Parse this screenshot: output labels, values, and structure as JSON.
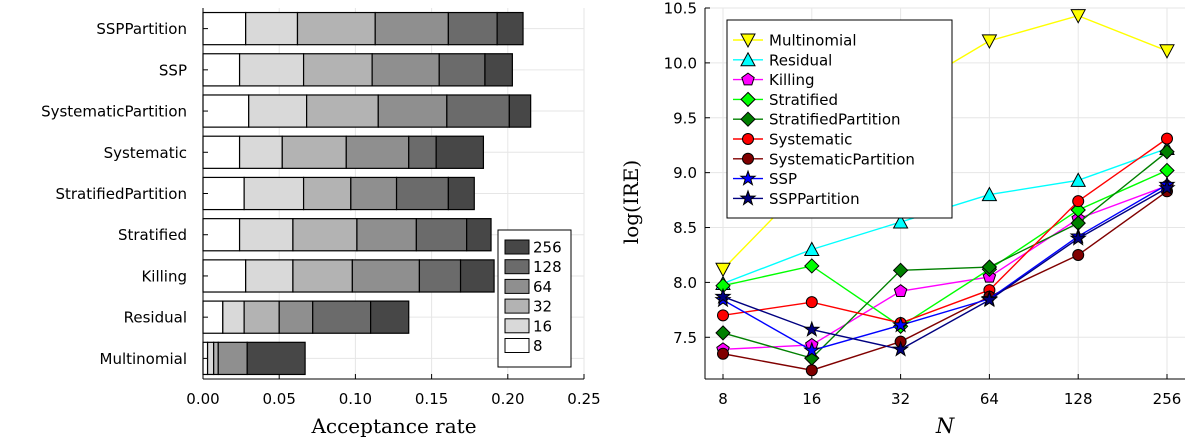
{
  "chart_data": [
    {
      "type": "bar",
      "orientation": "horizontal",
      "stacked": true,
      "categories": [
        "Multinomial",
        "Residual",
        "Killing",
        "Stratified",
        "StratifiedPartition",
        "Systematic",
        "SystematicPartition",
        "SSP",
        "SSPPartition"
      ],
      "series": [
        {
          "name": "8",
          "color": "#ffffff",
          "values": [
            0.003,
            0.013,
            0.028,
            0.024,
            0.027,
            0.024,
            0.03,
            0.024,
            0.028
          ]
        },
        {
          "name": "16",
          "color": "#d9d9d9",
          "values": [
            0.004,
            0.014,
            0.031,
            0.035,
            0.039,
            0.028,
            0.038,
            0.042,
            0.034
          ]
        },
        {
          "name": "32",
          "color": "#b3b3b3",
          "values": [
            0.003,
            0.023,
            0.039,
            0.042,
            0.031,
            0.042,
            0.047,
            0.045,
            0.051
          ]
        },
        {
          "name": "64",
          "color": "#8f8f8f",
          "values": [
            0.019,
            0.022,
            0.044,
            0.039,
            0.03,
            0.041,
            0.045,
            0.044,
            0.048
          ]
        },
        {
          "name": "128",
          "color": "#6b6b6b",
          "values": [
            0.0,
            0.038,
            0.027,
            0.033,
            0.034,
            0.018,
            0.041,
            0.03,
            0.032
          ]
        },
        {
          "name": "256",
          "color": "#474747",
          "values": [
            0.038,
            0.025,
            0.022,
            0.016,
            0.017,
            0.031,
            0.014,
            0.018,
            0.017
          ]
        }
      ],
      "xlabel": "Acceptance rate",
      "xlim": [
        0,
        0.25
      ],
      "xticks": [
        "0.00",
        "0.05",
        "0.10",
        "0.15",
        "0.20",
        "0.25"
      ],
      "grid": true,
      "legend_position": "bottom-right",
      "legend_order": [
        "256",
        "128",
        "64",
        "32",
        "16",
        "8"
      ]
    },
    {
      "type": "line",
      "x": [
        8,
        16,
        32,
        64,
        128,
        256
      ],
      "xticks": [
        "8",
        "16",
        "32",
        "64",
        "128",
        "256"
      ],
      "xscale": "log2",
      "xlabel": "N",
      "ylabel": "log(IRE)",
      "ylim": [
        7.12,
        10.5
      ],
      "yticks": [
        "7.5",
        "8.0",
        "8.5",
        "9.0",
        "9.5",
        "10.0",
        "10.5"
      ],
      "grid": true,
      "legend_position": "top-left",
      "series": [
        {
          "name": "Multinomial",
          "color": "#ffff00",
          "marker": "triangle-down",
          "values": [
            8.12,
            8.95,
            9.72,
            10.2,
            10.43,
            10.11
          ]
        },
        {
          "name": "Residual",
          "color": "#00ffff",
          "marker": "triangle-up",
          "values": [
            7.99,
            8.3,
            8.55,
            8.8,
            8.93,
            9.22
          ]
        },
        {
          "name": "Killing",
          "color": "#ff00ff",
          "marker": "pentagon",
          "values": [
            7.39,
            7.43,
            7.92,
            8.05,
            8.58,
            8.88
          ]
        },
        {
          "name": "Stratified",
          "color": "#00ff00",
          "marker": "diamond",
          "values": [
            7.97,
            8.15,
            7.6,
            8.12,
            8.66,
            9.02
          ]
        },
        {
          "name": "StratifiedPartition",
          "color": "#008000",
          "marker": "diamond",
          "values": [
            7.54,
            7.31,
            8.11,
            8.14,
            8.54,
            9.19
          ]
        },
        {
          "name": "Systematic",
          "color": "#ff0000",
          "marker": "circle",
          "values": [
            7.7,
            7.82,
            7.63,
            7.93,
            8.74,
            9.31
          ]
        },
        {
          "name": "SystematicPartition",
          "color": "#800000",
          "marker": "circle",
          "values": [
            7.35,
            7.2,
            7.46,
            7.87,
            8.25,
            8.83
          ]
        },
        {
          "name": "SSP",
          "color": "#0000ff",
          "marker": "star",
          "values": [
            7.84,
            7.38,
            7.61,
            7.85,
            8.42,
            8.89
          ]
        },
        {
          "name": "SSPPartition",
          "color": "#000080",
          "marker": "star",
          "values": [
            7.87,
            7.57,
            7.39,
            7.84,
            8.4,
            8.86
          ]
        }
      ]
    }
  ]
}
